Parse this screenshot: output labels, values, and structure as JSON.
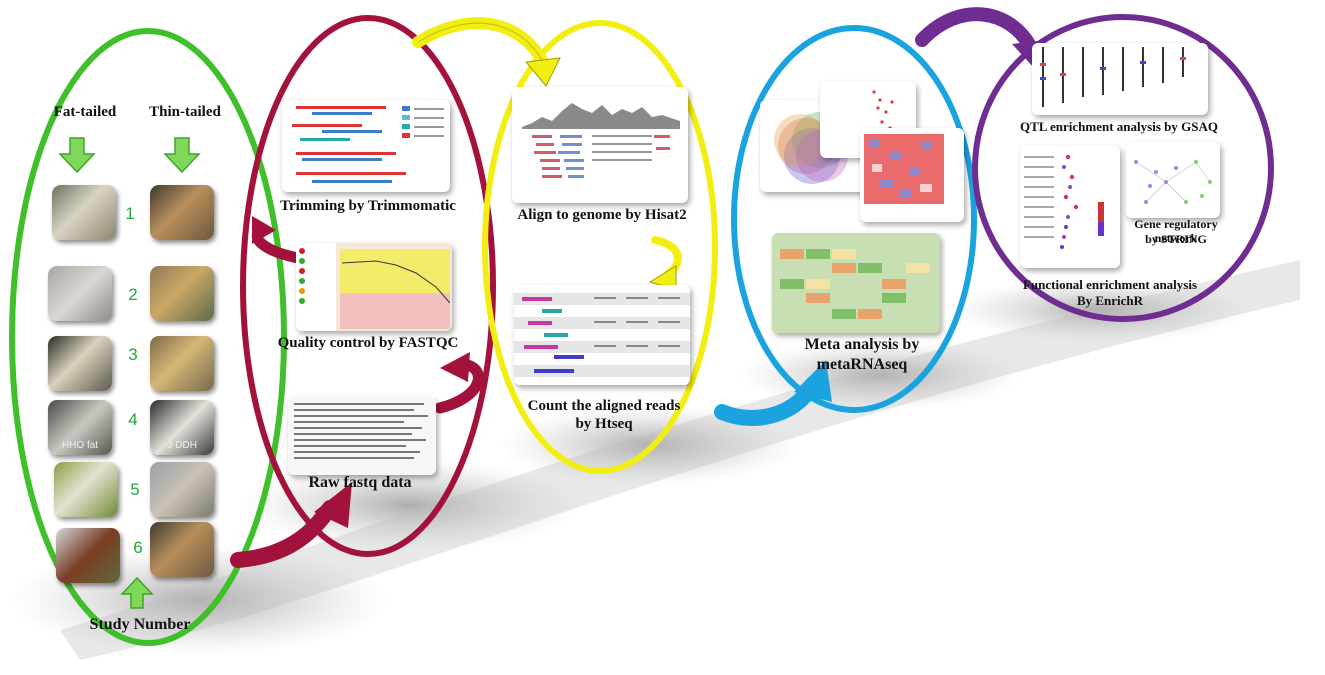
{
  "sheep_study": {
    "fat_label": "Fat-tailed",
    "thin_label": "Thin-tailed",
    "numbers": [
      "1",
      "2",
      "3",
      "4",
      "5",
      "6"
    ],
    "photo_tags": {
      "fat4": "HHO fat",
      "thin4": "3 DDH"
    },
    "footer": "Study Number"
  },
  "preprocessing": {
    "trimming": "Trimming by Trimmomatic",
    "quality": "Quality control by FASTQC",
    "raw": "Raw fastq data"
  },
  "alignment": {
    "align": "Align to genome by Hisat2",
    "count_line1": "Count the aligned reads",
    "count_line2": "by Htseq"
  },
  "meta": {
    "line1": "Meta analysis by",
    "line2": "metaRNAseq"
  },
  "enrichment": {
    "qtl": "QTL enrichment analysis by GSAQ",
    "network_line1": "Gene regulatory network",
    "network_line2": "by STRING",
    "functional_line1": "Functional enrichment analysis",
    "functional_line2": "By EnrichR"
  },
  "colors": {
    "green": "#3fbf2a",
    "maroon": "#a3123a",
    "yellow": "#f3ee12",
    "blue": "#1aa3df",
    "purple": "#6f2c91",
    "number_green": "#1faa3a"
  }
}
